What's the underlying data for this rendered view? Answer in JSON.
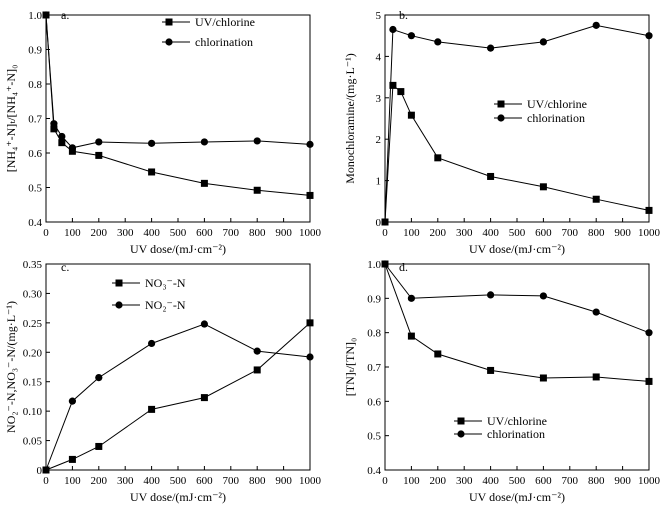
{
  "chart_data": [
    {
      "type": "line",
      "panel": "a.",
      "xlabel": "UV dose/(mJ·cm⁻²)",
      "ylabel": "[NH₄⁺-N]ₜ/[NH₄⁺-N]₀",
      "xlim": [
        0,
        1000
      ],
      "ylim": [
        0.4,
        1.0
      ],
      "xticks": [
        0,
        100,
        200,
        300,
        400,
        500,
        600,
        700,
        800,
        900,
        1000
      ],
      "yticks": [
        0.4,
        0.5,
        0.6,
        0.7,
        0.8,
        0.9,
        1.0
      ],
      "ytick_labels": [
        "0.4",
        "0.5",
        "0.6",
        "0.7",
        "0.8",
        "0.9",
        "1.0"
      ],
      "legend_position": "top-right",
      "series": [
        {
          "name": "UV/chlorine",
          "marker": "square",
          "x": [
            0,
            30,
            60,
            100,
            200,
            400,
            600,
            800,
            1000
          ],
          "y": [
            1.0,
            0.67,
            0.63,
            0.605,
            0.593,
            0.545,
            0.512,
            0.492,
            0.477
          ]
        },
        {
          "name": "chlorination",
          "marker": "circle",
          "x": [
            0,
            30,
            60,
            100,
            200,
            400,
            600,
            800,
            1000
          ],
          "y": [
            1.0,
            0.685,
            0.648,
            0.615,
            0.632,
            0.628,
            0.632,
            0.635,
            0.625
          ]
        }
      ]
    },
    {
      "type": "line",
      "panel": "b.",
      "xlabel": "UV dose/(mJ·cm⁻²)",
      "ylabel": "Monochloramine/(mg·L⁻¹)",
      "xlim": [
        0,
        1000
      ],
      "ylim": [
        0,
        5
      ],
      "xticks": [
        0,
        100,
        200,
        300,
        400,
        500,
        600,
        700,
        800,
        900,
        1000
      ],
      "yticks": [
        0,
        1,
        2,
        3,
        4,
        5
      ],
      "ytick_labels": [
        "0",
        "1",
        "2",
        "3",
        "4",
        "5"
      ],
      "legend_position": "middle-right",
      "series": [
        {
          "name": "UV/chlorine",
          "marker": "square",
          "x": [
            0,
            30,
            60,
            100,
            200,
            400,
            600,
            800,
            1000
          ],
          "y": [
            0,
            3.3,
            3.15,
            2.58,
            1.55,
            1.1,
            0.85,
            0.55,
            0.28
          ]
        },
        {
          "name": "chlorination",
          "marker": "circle",
          "x": [
            0,
            30,
            100,
            200,
            400,
            600,
            800,
            1000
          ],
          "y": [
            0,
            4.65,
            4.5,
            4.35,
            4.2,
            4.35,
            4.75,
            4.5
          ]
        }
      ]
    },
    {
      "type": "line",
      "panel": "c.",
      "xlabel": "UV dose/(mJ·cm⁻²)",
      "ylabel": "NO₂⁻-N,NO₃⁻-N/(mg·L⁻¹)",
      "xlim": [
        0,
        1000
      ],
      "ylim": [
        0,
        0.35
      ],
      "xticks": [
        0,
        100,
        200,
        300,
        400,
        500,
        600,
        700,
        800,
        900,
        1000
      ],
      "yticks": [
        0,
        0.05,
        0.1,
        0.15,
        0.2,
        0.25,
        0.3,
        0.35
      ],
      "ytick_labels": [
        "0",
        "0.05",
        "0.10",
        "0.15",
        "0.20",
        "0.25",
        "0.30",
        "0.35"
      ],
      "legend_position": "top-center",
      "series": [
        {
          "name": "NO₃⁻-N",
          "marker": "square",
          "x": [
            0,
            100,
            200,
            400,
            600,
            800,
            1000
          ],
          "y": [
            0,
            0.018,
            0.04,
            0.103,
            0.123,
            0.17,
            0.25
          ]
        },
        {
          "name": "NO₂⁻-N",
          "marker": "circle",
          "x": [
            0,
            100,
            200,
            400,
            600,
            800,
            1000
          ],
          "y": [
            0,
            0.117,
            0.157,
            0.215,
            0.248,
            0.202,
            0.192
          ]
        }
      ]
    },
    {
      "type": "line",
      "panel": "d.",
      "xlabel": "UV dose/(mJ·cm⁻²)",
      "ylabel": "[TN]ₜ/[TN]₀",
      "xlim": [
        0,
        1000
      ],
      "ylim": [
        0.4,
        1.0
      ],
      "xticks": [
        0,
        100,
        200,
        300,
        400,
        500,
        600,
        700,
        800,
        900,
        1000
      ],
      "yticks": [
        0.4,
        0.5,
        0.6,
        0.7,
        0.8,
        0.9,
        1.0
      ],
      "ytick_labels": [
        "0.4",
        "0.5",
        "0.6",
        "0.7",
        "0.8",
        "0.9",
        "1.0"
      ],
      "legend_position": "bottom-left",
      "series": [
        {
          "name": "UV/chlorine",
          "marker": "square",
          "x": [
            0,
            100,
            200,
            400,
            600,
            800,
            1000
          ],
          "y": [
            1.0,
            0.79,
            0.738,
            0.69,
            0.668,
            0.671,
            0.658
          ]
        },
        {
          "name": "chlorination",
          "marker": "circle",
          "x": [
            0,
            100,
            400,
            600,
            800,
            1000
          ],
          "y": [
            1.0,
            0.9,
            0.91,
            0.907,
            0.86,
            0.8
          ]
        }
      ]
    }
  ]
}
